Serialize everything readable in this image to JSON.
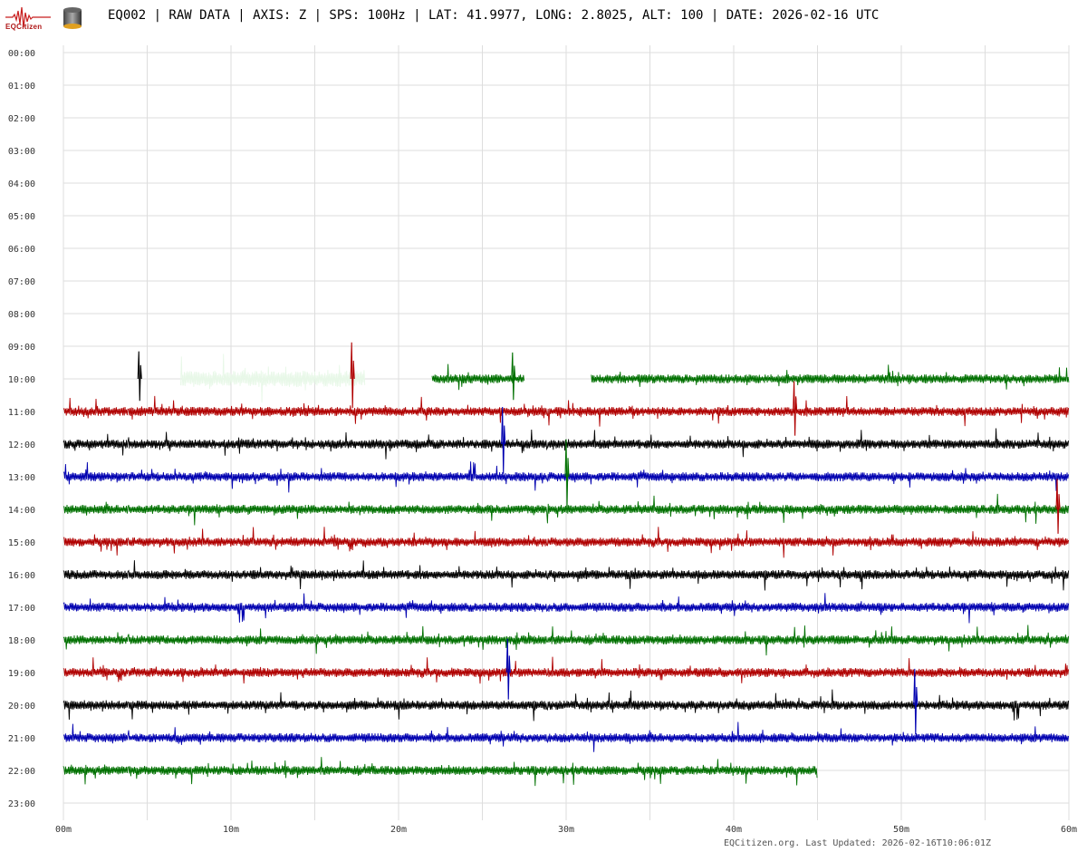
{
  "header": {
    "logo_text": "EQCitizen",
    "title": "EQ002 | RAW DATA | AXIS: Z | SPS: 100Hz | LAT: 41.9977, LONG: 2.8025, ALT: 100 | DATE: 2026-02-16 UTC"
  },
  "footer": {
    "text": "EQCitizen.org. Last Updated: 2026-02-16T10:06:01Z"
  },
  "chart_data": {
    "type": "line",
    "title": "",
    "xlabel": "",
    "ylabel": "",
    "grid": true,
    "x_ticks": [
      "00m",
      "10m",
      "20m",
      "30m",
      "40m",
      "50m",
      "60m"
    ],
    "y_ticks": [
      "00:00",
      "01:00",
      "02:00",
      "03:00",
      "04:00",
      "05:00",
      "06:00",
      "07:00",
      "08:00",
      "09:00",
      "10:00",
      "11:00",
      "12:00",
      "13:00",
      "14:00",
      "15:00",
      "16:00",
      "17:00",
      "18:00",
      "19:00",
      "20:00",
      "21:00",
      "22:00",
      "23:00"
    ],
    "xlim": [
      0,
      60
    ],
    "colors": {
      "red": "#b00000",
      "black": "#000000",
      "blue": "#0000b0",
      "green": "#007000",
      "pale": "#e8f8e8"
    },
    "series": [
      {
        "hour": "10:00",
        "color": "pale",
        "segments": [
          [
            7,
            18
          ]
        ]
      },
      {
        "hour": "10:00",
        "color": "green",
        "segments": [
          [
            22,
            27.5
          ],
          [
            31.5,
            60
          ]
        ]
      },
      {
        "hour": "11:00",
        "color": "red",
        "segments": [
          [
            0,
            60
          ]
        ]
      },
      {
        "hour": "12:00",
        "color": "black",
        "segments": [
          [
            0,
            60
          ]
        ]
      },
      {
        "hour": "13:00",
        "color": "blue",
        "segments": [
          [
            0,
            60
          ]
        ]
      },
      {
        "hour": "14:00",
        "color": "green",
        "segments": [
          [
            0,
            60
          ]
        ]
      },
      {
        "hour": "15:00",
        "color": "red",
        "segments": [
          [
            0,
            60
          ]
        ]
      },
      {
        "hour": "16:00",
        "color": "black",
        "segments": [
          [
            0,
            60
          ]
        ]
      },
      {
        "hour": "17:00",
        "color": "blue",
        "segments": [
          [
            0,
            60
          ]
        ]
      },
      {
        "hour": "18:00",
        "color": "green",
        "segments": [
          [
            0,
            60
          ]
        ]
      },
      {
        "hour": "19:00",
        "color": "red",
        "segments": [
          [
            0,
            60
          ]
        ]
      },
      {
        "hour": "20:00",
        "color": "black",
        "segments": [
          [
            0,
            60
          ]
        ]
      },
      {
        "hour": "21:00",
        "color": "blue",
        "segments": [
          [
            0,
            60
          ]
        ]
      },
      {
        "hour": "22:00",
        "color": "green",
        "segments": [
          [
            0,
            45
          ]
        ]
      }
    ],
    "spikes": [
      {
        "hour": "10:00",
        "minute": 4.5,
        "color": "black"
      },
      {
        "hour": "10:00",
        "minute": 17.2,
        "color": "red"
      },
      {
        "hour": "10:00",
        "minute": 26.8,
        "color": "green"
      },
      {
        "hour": "11:00",
        "minute": 43.6,
        "color": "red"
      },
      {
        "hour": "12:00",
        "minute": 26.2,
        "color": "blue"
      },
      {
        "hour": "13:00",
        "minute": 30.0,
        "color": "green"
      },
      {
        "hour": "14:00",
        "minute": 59.3,
        "color": "red"
      },
      {
        "hour": "19:00",
        "minute": 26.5,
        "color": "blue"
      },
      {
        "hour": "20:00",
        "minute": 50.8,
        "color": "blue"
      }
    ]
  }
}
